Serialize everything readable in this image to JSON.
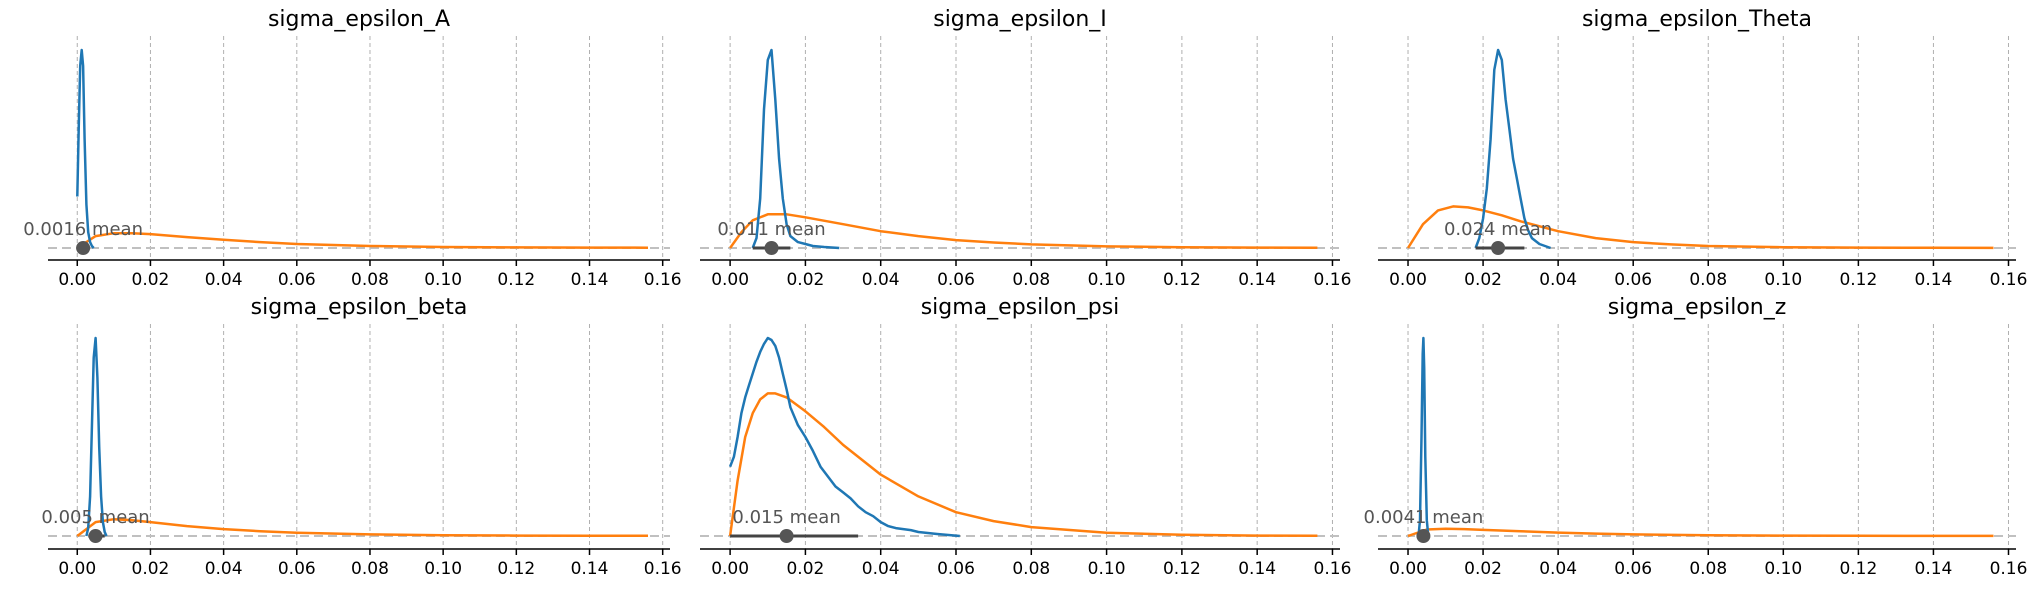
{
  "colors": {
    "posterior": "#1f77b4",
    "prior": "#ff7f0e",
    "point": "#555555",
    "hdi": "#444444"
  },
  "chart_data": [
    {
      "type": "line",
      "title": "sigma_epsilon_A",
      "xlim": [
        -0.008,
        0.162
      ],
      "grid": true,
      "xticks": [
        "0.00",
        "0.02",
        "0.04",
        "0.06",
        "0.08",
        "0.10",
        "0.12",
        "0.14",
        "0.16"
      ],
      "point_estimate": {
        "label": "0.0016 mean",
        "value": 0.0016
      },
      "hdi": [
        0.0,
        0.0035
      ],
      "series": [
        {
          "role": "posterior",
          "x": [
            0.0,
            0.0004,
            0.0008,
            0.0012,
            0.0016,
            0.002,
            0.0025,
            0.003,
            0.0035,
            0.004,
            0.0045
          ],
          "y": [
            0.26,
            0.6,
            0.92,
            1.0,
            0.92,
            0.55,
            0.22,
            0.08,
            0.03,
            0.01,
            0.0
          ]
        },
        {
          "role": "prior",
          "x": [
            0.0,
            0.005,
            0.01,
            0.015,
            0.02,
            0.03,
            0.04,
            0.05,
            0.06,
            0.08,
            0.1,
            0.12,
            0.14,
            0.156
          ],
          "y": [
            0.0,
            0.06,
            0.075,
            0.075,
            0.07,
            0.055,
            0.042,
            0.03,
            0.02,
            0.01,
            0.005,
            0.003,
            0.002,
            0.0015
          ]
        }
      ]
    },
    {
      "type": "line",
      "title": "sigma_epsilon_I",
      "xlim": [
        -0.008,
        0.162
      ],
      "grid": true,
      "xticks": [
        "0.00",
        "0.02",
        "0.04",
        "0.06",
        "0.08",
        "0.10",
        "0.12",
        "0.14",
        "0.16"
      ],
      "point_estimate": {
        "label": "0.011 mean",
        "value": 0.011
      },
      "hdi": [
        0.006,
        0.016
      ],
      "series": [
        {
          "role": "posterior",
          "x": [
            0.006,
            0.007,
            0.008,
            0.009,
            0.01,
            0.011,
            0.012,
            0.013,
            0.014,
            0.015,
            0.016,
            0.018,
            0.02,
            0.022,
            0.025,
            0.029
          ],
          "y": [
            0.0,
            0.05,
            0.25,
            0.7,
            0.95,
            1.0,
            0.75,
            0.45,
            0.25,
            0.12,
            0.06,
            0.03,
            0.02,
            0.01,
            0.005,
            0.0
          ]
        },
        {
          "role": "prior",
          "x": [
            0.0,
            0.003,
            0.006,
            0.01,
            0.015,
            0.02,
            0.03,
            0.04,
            0.05,
            0.06,
            0.07,
            0.08,
            0.1,
            0.12,
            0.14,
            0.156
          ],
          "y": [
            0.0,
            0.08,
            0.14,
            0.17,
            0.17,
            0.155,
            0.12,
            0.085,
            0.06,
            0.04,
            0.028,
            0.018,
            0.008,
            0.004,
            0.002,
            0.001
          ]
        }
      ]
    },
    {
      "type": "line",
      "title": "sigma_epsilon_Theta",
      "xlim": [
        -0.008,
        0.162
      ],
      "grid": true,
      "xticks": [
        "0.00",
        "0.02",
        "0.04",
        "0.06",
        "0.08",
        "0.10",
        "0.12",
        "0.14",
        "0.16"
      ],
      "point_estimate": {
        "label": "0.024 mean",
        "value": 0.024
      },
      "hdi": [
        0.018,
        0.031
      ],
      "series": [
        {
          "role": "posterior",
          "x": [
            0.018,
            0.019,
            0.02,
            0.021,
            0.022,
            0.023,
            0.024,
            0.025,
            0.026,
            0.027,
            0.028,
            0.029,
            0.03,
            0.031,
            0.032,
            0.033,
            0.035,
            0.038
          ],
          "y": [
            0.0,
            0.05,
            0.15,
            0.3,
            0.55,
            0.9,
            1.0,
            0.95,
            0.75,
            0.6,
            0.45,
            0.35,
            0.25,
            0.15,
            0.09,
            0.05,
            0.02,
            0.0
          ]
        },
        {
          "role": "prior",
          "x": [
            0.0,
            0.004,
            0.008,
            0.012,
            0.016,
            0.02,
            0.025,
            0.03,
            0.04,
            0.05,
            0.06,
            0.07,
            0.08,
            0.1,
            0.12,
            0.14,
            0.156
          ],
          "y": [
            0.0,
            0.12,
            0.19,
            0.21,
            0.205,
            0.19,
            0.165,
            0.135,
            0.085,
            0.05,
            0.03,
            0.018,
            0.01,
            0.004,
            0.002,
            0.001,
            0.0005
          ]
        }
      ]
    },
    {
      "type": "line",
      "title": "sigma_epsilon_beta",
      "xlim": [
        -0.008,
        0.162
      ],
      "grid": true,
      "xticks": [
        "0.00",
        "0.02",
        "0.04",
        "0.06",
        "0.08",
        "0.10",
        "0.12",
        "0.14",
        "0.16"
      ],
      "point_estimate": {
        "label": "0.005 mean",
        "value": 0.005
      },
      "hdi": [
        0.003,
        0.0075
      ],
      "series": [
        {
          "role": "posterior",
          "x": [
            0.0025,
            0.003,
            0.0035,
            0.004,
            0.0045,
            0.005,
            0.0055,
            0.006,
            0.0065,
            0.007,
            0.0075,
            0.008
          ],
          "y": [
            0.0,
            0.04,
            0.2,
            0.55,
            0.9,
            1.0,
            0.8,
            0.45,
            0.2,
            0.07,
            0.02,
            0.0
          ]
        },
        {
          "role": "prior",
          "x": [
            0.0,
            0.005,
            0.01,
            0.015,
            0.02,
            0.03,
            0.04,
            0.05,
            0.06,
            0.08,
            0.1,
            0.12,
            0.14,
            0.156
          ],
          "y": [
            0.0,
            0.07,
            0.085,
            0.08,
            0.07,
            0.05,
            0.035,
            0.024,
            0.016,
            0.008,
            0.004,
            0.002,
            0.001,
            0.0008
          ]
        }
      ]
    },
    {
      "type": "line",
      "title": "sigma_epsilon_psi",
      "xlim": [
        -0.008,
        0.162
      ],
      "grid": true,
      "xticks": [
        "0.00",
        "0.02",
        "0.04",
        "0.06",
        "0.08",
        "0.10",
        "0.12",
        "0.14",
        "0.16"
      ],
      "point_estimate": {
        "label": "0.015 mean",
        "value": 0.015
      },
      "hdi": [
        0.0,
        0.034
      ],
      "series": [
        {
          "role": "posterior",
          "x": [
            0.0,
            0.001,
            0.002,
            0.003,
            0.004,
            0.005,
            0.006,
            0.007,
            0.008,
            0.009,
            0.01,
            0.011,
            0.012,
            0.013,
            0.014,
            0.015,
            0.016,
            0.018,
            0.02,
            0.022,
            0.024,
            0.026,
            0.028,
            0.03,
            0.032,
            0.034,
            0.036,
            0.038,
            0.04,
            0.042,
            0.044,
            0.046,
            0.048,
            0.05,
            0.055,
            0.061
          ],
          "y": [
            0.35,
            0.4,
            0.5,
            0.62,
            0.7,
            0.76,
            0.82,
            0.88,
            0.93,
            0.97,
            1.0,
            0.99,
            0.96,
            0.9,
            0.82,
            0.74,
            0.65,
            0.56,
            0.5,
            0.43,
            0.35,
            0.3,
            0.25,
            0.22,
            0.19,
            0.15,
            0.12,
            0.1,
            0.07,
            0.05,
            0.04,
            0.035,
            0.03,
            0.02,
            0.01,
            0.0
          ]
        },
        {
          "role": "prior",
          "x": [
            0.0,
            0.002,
            0.004,
            0.006,
            0.008,
            0.01,
            0.012,
            0.015,
            0.02,
            0.025,
            0.03,
            0.04,
            0.05,
            0.06,
            0.07,
            0.08,
            0.1,
            0.12,
            0.14,
            0.156
          ],
          "y": [
            0.0,
            0.28,
            0.5,
            0.62,
            0.69,
            0.72,
            0.72,
            0.7,
            0.63,
            0.55,
            0.46,
            0.31,
            0.2,
            0.12,
            0.075,
            0.045,
            0.016,
            0.006,
            0.002,
            0.001
          ]
        }
      ]
    },
    {
      "type": "line",
      "title": "sigma_epsilon_z",
      "xlim": [
        -0.008,
        0.162
      ],
      "grid": true,
      "xticks": [
        "0.00",
        "0.02",
        "0.04",
        "0.06",
        "0.08",
        "0.10",
        "0.12",
        "0.14",
        "0.16"
      ],
      "point_estimate": {
        "label": "0.0041 mean",
        "value": 0.0041
      },
      "hdi": [
        0.0032,
        0.005
      ],
      "series": [
        {
          "role": "posterior",
          "x": [
            0.0028,
            0.0032,
            0.0036,
            0.0039,
            0.0041,
            0.0043,
            0.0046,
            0.005,
            0.0054
          ],
          "y": [
            0.0,
            0.08,
            0.5,
            0.92,
            1.0,
            0.85,
            0.4,
            0.08,
            0.0
          ]
        },
        {
          "role": "prior",
          "x": [
            0.0,
            0.005,
            0.01,
            0.015,
            0.02,
            0.03,
            0.04,
            0.05,
            0.06,
            0.08,
            0.1,
            0.12,
            0.14,
            0.156
          ],
          "y": [
            0.0,
            0.033,
            0.037,
            0.035,
            0.031,
            0.024,
            0.017,
            0.012,
            0.008,
            0.004,
            0.002,
            0.001,
            0.0006,
            0.0004
          ]
        }
      ]
    }
  ]
}
